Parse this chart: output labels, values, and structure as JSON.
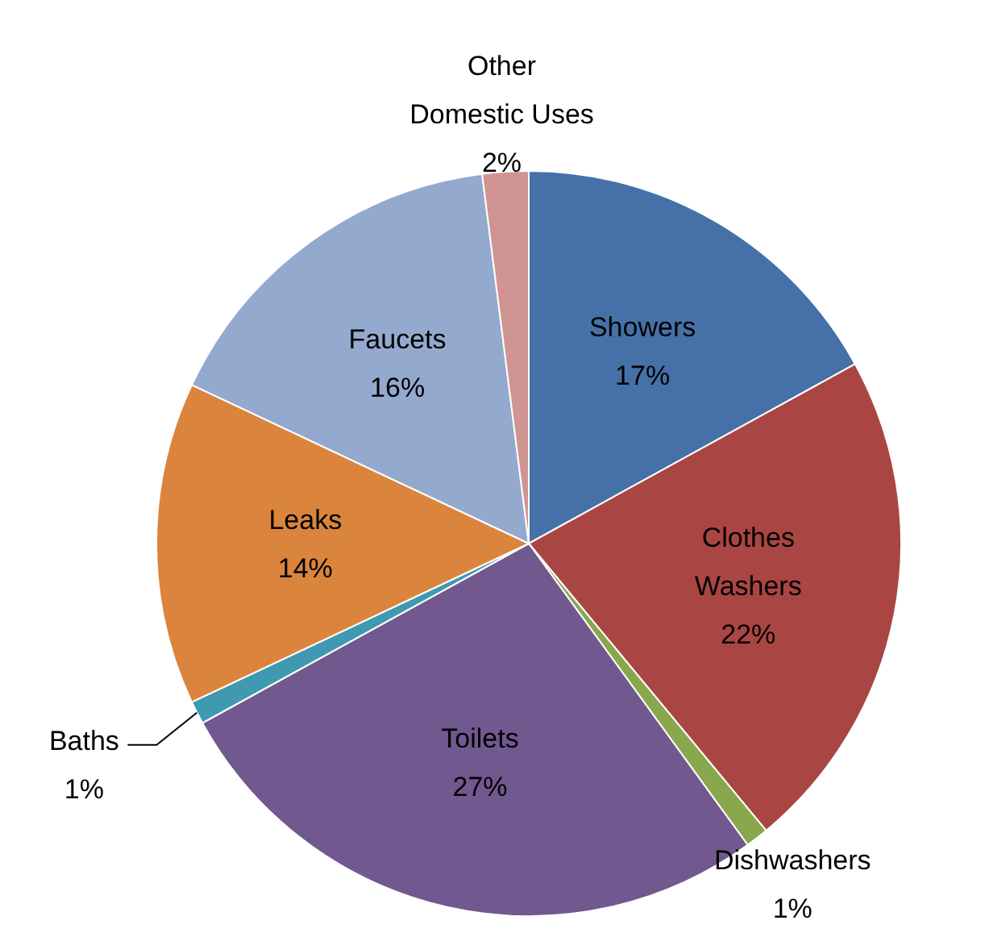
{
  "chart_data": {
    "type": "pie",
    "categories": [
      "Showers",
      "Clothes Washers",
      "Dishwashers",
      "Toilets",
      "Baths",
      "Leaks",
      "Faucets",
      "Other Domestic Uses"
    ],
    "values": [
      17,
      22,
      1,
      27,
      1,
      14,
      16,
      2
    ],
    "value_labels": [
      "17%",
      "22%",
      "1%",
      "27%",
      "1%",
      "14%",
      "16%",
      "2%"
    ],
    "colors": [
      "#4571a8",
      "#a94643",
      "#89a74c",
      "#71588f",
      "#3f9ab1",
      "#db843d",
      "#94a9ce",
      "#d09493"
    ]
  }
}
